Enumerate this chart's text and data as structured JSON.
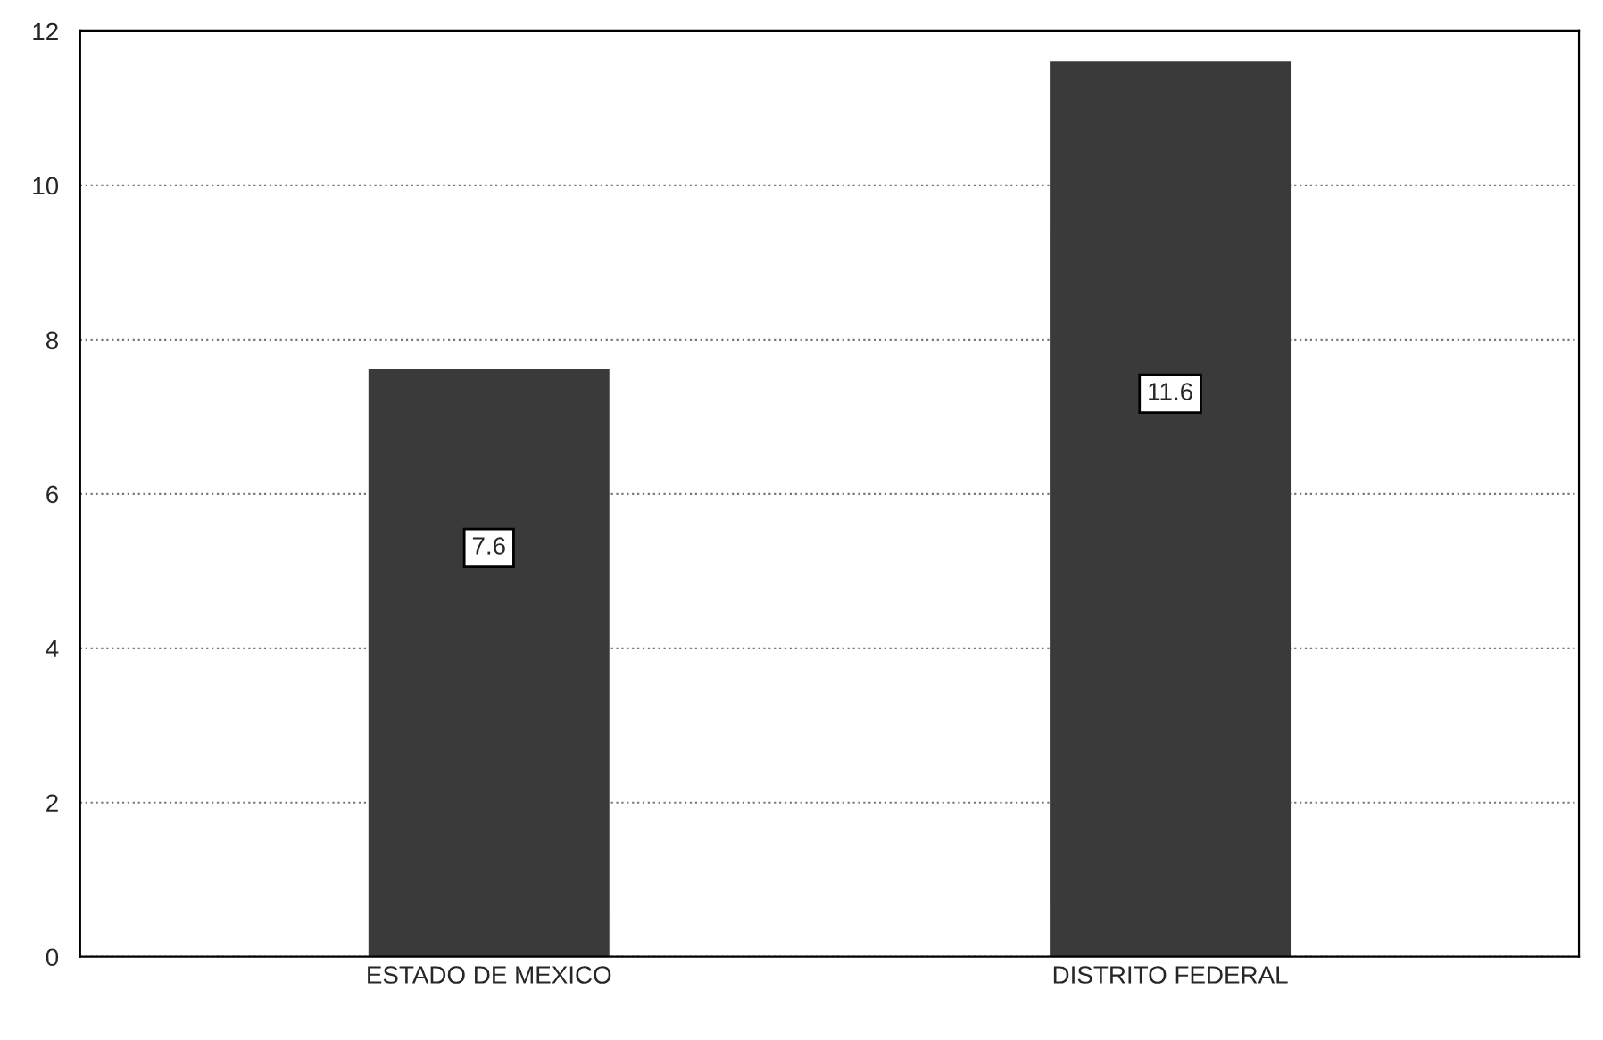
{
  "chart_data": {
    "type": "bar",
    "categories": [
      "ESTADO DE MEXICO",
      "DISTRITO FEDERAL"
    ],
    "values": [
      7.6,
      11.6
    ],
    "color": "#3a3a3a",
    "ylim": [
      0,
      12
    ],
    "yticks": [
      0,
      2,
      4,
      6,
      8,
      10,
      12
    ],
    "grid": "y",
    "line_style": "dotted",
    "data_labels": true
  }
}
